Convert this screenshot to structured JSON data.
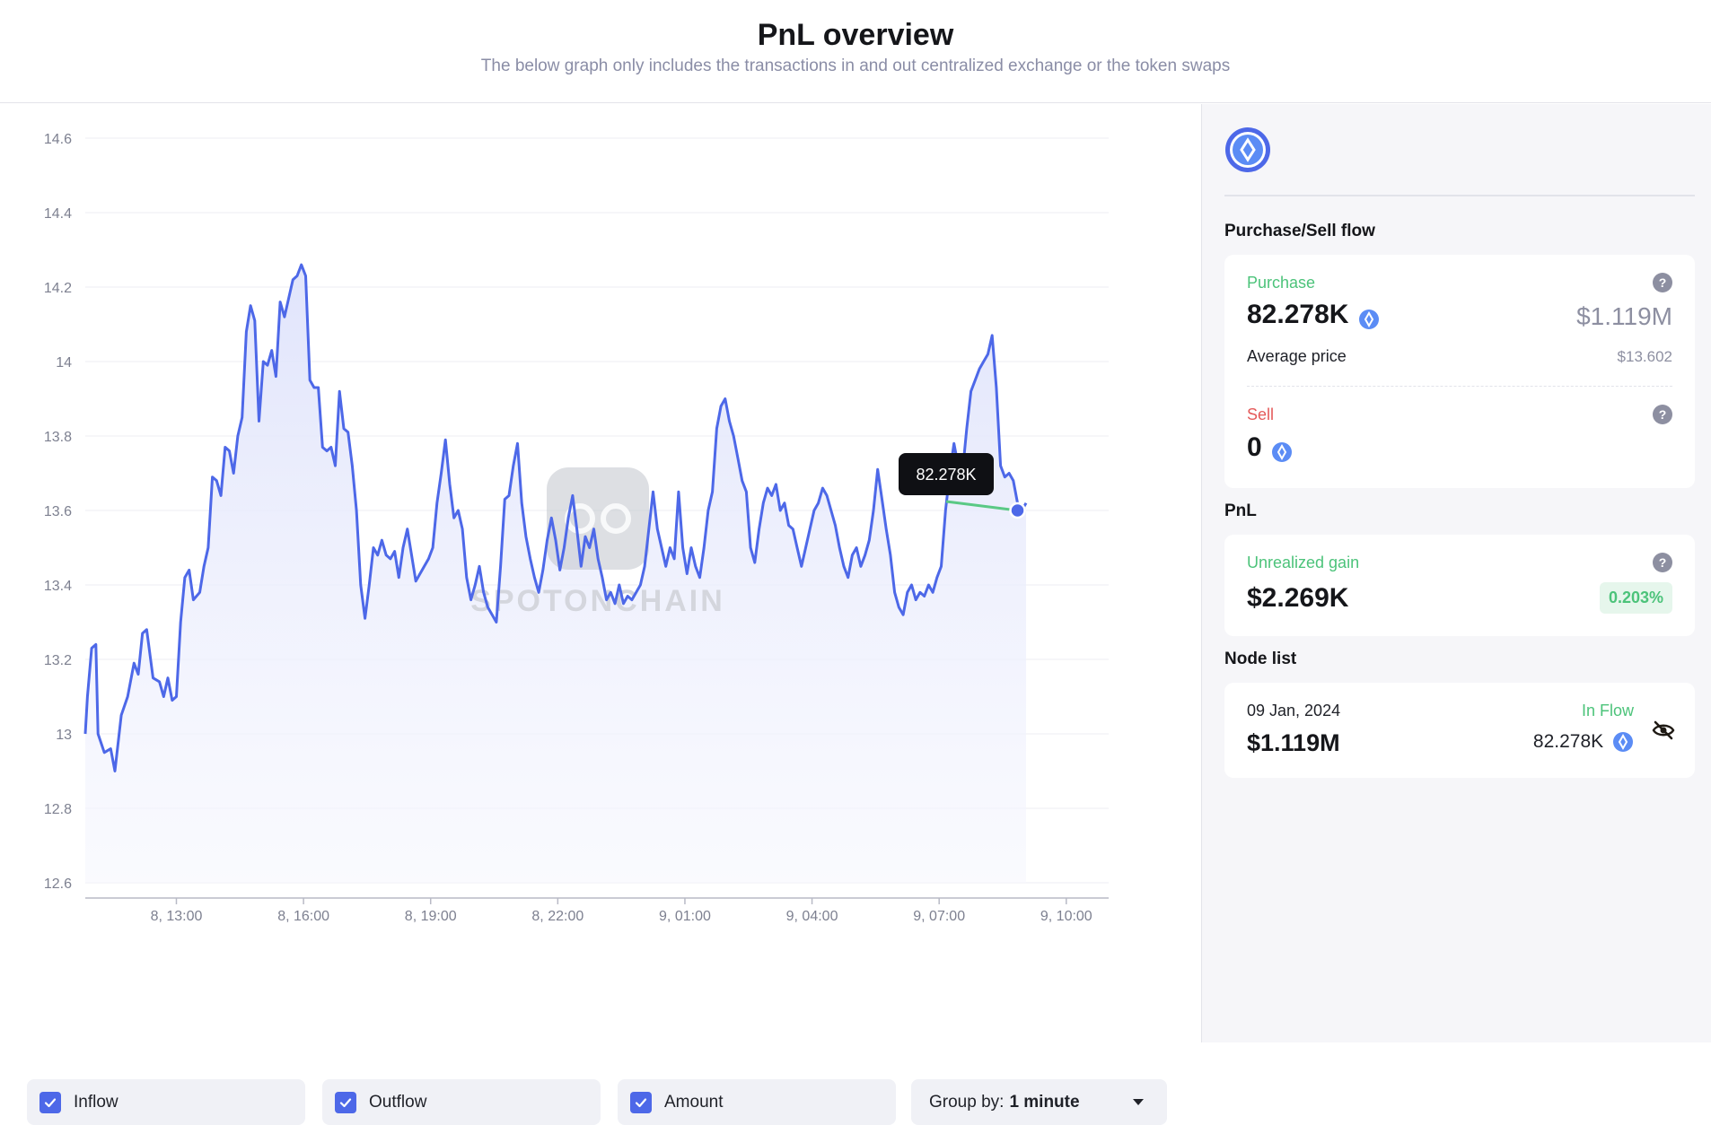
{
  "header": {
    "title": "PnL overview",
    "subtitle": "The below graph only includes the transactions in and out centralized exchange or the token swaps"
  },
  "chart_data": {
    "type": "area",
    "y_ticks": [
      "14.6",
      "14.4",
      "14.2",
      "14",
      "13.8",
      "13.6",
      "13.4",
      "13.2",
      "13",
      "12.8",
      "12.6"
    ],
    "ylim": [
      12.6,
      14.6
    ],
    "x_ticks": [
      "8, 13:00",
      "8, 16:00",
      "8, 19:00",
      "8, 22:00",
      "9, 01:00",
      "9, 04:00",
      "9, 07:00",
      "9, 10:00"
    ],
    "x_tick_hours": [
      13,
      16,
      19,
      22,
      25,
      28,
      31,
      34
    ],
    "xlim_hours": [
      10.85,
      35.0
    ],
    "series": [
      {
        "values": [
          [
            10.85,
            13.0
          ],
          [
            10.9,
            13.1
          ],
          [
            11.0,
            13.23
          ],
          [
            11.1,
            13.24
          ],
          [
            11.15,
            13.0
          ],
          [
            11.3,
            12.95
          ],
          [
            11.45,
            12.96
          ],
          [
            11.55,
            12.9
          ],
          [
            11.7,
            13.05
          ],
          [
            11.85,
            13.1
          ],
          [
            12.0,
            13.19
          ],
          [
            12.1,
            13.16
          ],
          [
            12.2,
            13.27
          ],
          [
            12.3,
            13.28
          ],
          [
            12.45,
            13.15
          ],
          [
            12.6,
            13.14
          ],
          [
            12.7,
            13.1
          ],
          [
            12.8,
            13.15
          ],
          [
            12.9,
            13.09
          ],
          [
            13.0,
            13.1
          ],
          [
            13.1,
            13.3
          ],
          [
            13.2,
            13.42
          ],
          [
            13.3,
            13.44
          ],
          [
            13.4,
            13.36
          ],
          [
            13.55,
            13.38
          ],
          [
            13.65,
            13.45
          ],
          [
            13.75,
            13.5
          ],
          [
            13.85,
            13.69
          ],
          [
            13.95,
            13.68
          ],
          [
            14.05,
            13.64
          ],
          [
            14.15,
            13.77
          ],
          [
            14.25,
            13.76
          ],
          [
            14.35,
            13.7
          ],
          [
            14.45,
            13.8
          ],
          [
            14.55,
            13.85
          ],
          [
            14.65,
            14.08
          ],
          [
            14.75,
            14.15
          ],
          [
            14.85,
            14.11
          ],
          [
            14.95,
            13.84
          ],
          [
            15.05,
            14.0
          ],
          [
            15.15,
            13.99
          ],
          [
            15.25,
            14.03
          ],
          [
            15.35,
            13.96
          ],
          [
            15.45,
            14.16
          ],
          [
            15.55,
            14.12
          ],
          [
            15.65,
            14.17
          ],
          [
            15.75,
            14.22
          ],
          [
            15.85,
            14.23
          ],
          [
            15.95,
            14.26
          ],
          [
            16.05,
            14.23
          ],
          [
            16.15,
            13.95
          ],
          [
            16.25,
            13.93
          ],
          [
            16.35,
            13.93
          ],
          [
            16.45,
            13.77
          ],
          [
            16.55,
            13.76
          ],
          [
            16.65,
            13.77
          ],
          [
            16.75,
            13.72
          ],
          [
            16.85,
            13.92
          ],
          [
            16.95,
            13.82
          ],
          [
            17.05,
            13.81
          ],
          [
            17.15,
            13.72
          ],
          [
            17.25,
            13.6
          ],
          [
            17.35,
            13.4
          ],
          [
            17.45,
            13.31
          ],
          [
            17.55,
            13.4
          ],
          [
            17.65,
            13.5
          ],
          [
            17.75,
            13.48
          ],
          [
            17.85,
            13.52
          ],
          [
            17.95,
            13.48
          ],
          [
            18.05,
            13.47
          ],
          [
            18.15,
            13.49
          ],
          [
            18.25,
            13.42
          ],
          [
            18.35,
            13.5
          ],
          [
            18.45,
            13.55
          ],
          [
            18.55,
            13.48
          ],
          [
            18.65,
            13.41
          ],
          [
            18.75,
            13.43
          ],
          [
            18.85,
            13.45
          ],
          [
            18.95,
            13.47
          ],
          [
            19.05,
            13.5
          ],
          [
            19.15,
            13.62
          ],
          [
            19.25,
            13.7
          ],
          [
            19.35,
            13.79
          ],
          [
            19.45,
            13.67
          ],
          [
            19.55,
            13.58
          ],
          [
            19.65,
            13.6
          ],
          [
            19.75,
            13.55
          ],
          [
            19.85,
            13.42
          ],
          [
            19.95,
            13.36
          ],
          [
            20.05,
            13.4
          ],
          [
            20.15,
            13.45
          ],
          [
            20.25,
            13.38
          ],
          [
            20.35,
            13.34
          ],
          [
            20.45,
            13.32
          ],
          [
            20.55,
            13.3
          ],
          [
            20.65,
            13.45
          ],
          [
            20.75,
            13.63
          ],
          [
            20.85,
            13.64
          ],
          [
            20.95,
            13.72
          ],
          [
            21.05,
            13.78
          ],
          [
            21.15,
            13.62
          ],
          [
            21.25,
            13.53
          ],
          [
            21.35,
            13.47
          ],
          [
            21.45,
            13.42
          ],
          [
            21.55,
            13.38
          ],
          [
            21.65,
            13.44
          ],
          [
            21.75,
            13.52
          ],
          [
            21.85,
            13.58
          ],
          [
            21.95,
            13.52
          ],
          [
            22.05,
            13.44
          ],
          [
            22.15,
            13.5
          ],
          [
            22.25,
            13.58
          ],
          [
            22.35,
            13.64
          ],
          [
            22.45,
            13.55
          ],
          [
            22.55,
            13.45
          ],
          [
            22.65,
            13.53
          ],
          [
            22.75,
            13.5
          ],
          [
            22.85,
            13.55
          ],
          [
            22.95,
            13.47
          ],
          [
            23.05,
            13.42
          ],
          [
            23.15,
            13.36
          ],
          [
            23.25,
            13.38
          ],
          [
            23.35,
            13.35
          ],
          [
            23.45,
            13.4
          ],
          [
            23.55,
            13.35
          ],
          [
            23.65,
            13.37
          ],
          [
            23.75,
            13.36
          ],
          [
            23.85,
            13.38
          ],
          [
            23.95,
            13.4
          ],
          [
            24.05,
            13.45
          ],
          [
            24.15,
            13.55
          ],
          [
            24.25,
            13.65
          ],
          [
            24.35,
            13.55
          ],
          [
            24.45,
            13.5
          ],
          [
            24.55,
            13.45
          ],
          [
            24.65,
            13.5
          ],
          [
            24.75,
            13.47
          ],
          [
            24.85,
            13.65
          ],
          [
            24.95,
            13.5
          ],
          [
            25.05,
            13.43
          ],
          [
            25.15,
            13.5
          ],
          [
            25.25,
            13.45
          ],
          [
            25.35,
            13.42
          ],
          [
            25.45,
            13.5
          ],
          [
            25.55,
            13.6
          ],
          [
            25.65,
            13.65
          ],
          [
            25.75,
            13.82
          ],
          [
            25.85,
            13.88
          ],
          [
            25.95,
            13.9
          ],
          [
            26.05,
            13.84
          ],
          [
            26.15,
            13.8
          ],
          [
            26.25,
            13.74
          ],
          [
            26.35,
            13.68
          ],
          [
            26.45,
            13.65
          ],
          [
            26.55,
            13.5
          ],
          [
            26.65,
            13.46
          ],
          [
            26.75,
            13.55
          ],
          [
            26.85,
            13.62
          ],
          [
            26.95,
            13.66
          ],
          [
            27.05,
            13.64
          ],
          [
            27.15,
            13.67
          ],
          [
            27.25,
            13.6
          ],
          [
            27.35,
            13.62
          ],
          [
            27.45,
            13.56
          ],
          [
            27.55,
            13.55
          ],
          [
            27.65,
            13.5
          ],
          [
            27.75,
            13.45
          ],
          [
            27.85,
            13.5
          ],
          [
            27.95,
            13.55
          ],
          [
            28.05,
            13.6
          ],
          [
            28.15,
            13.62
          ],
          [
            28.25,
            13.66
          ],
          [
            28.35,
            13.64
          ],
          [
            28.45,
            13.6
          ],
          [
            28.55,
            13.56
          ],
          [
            28.65,
            13.5
          ],
          [
            28.75,
            13.45
          ],
          [
            28.85,
            13.42
          ],
          [
            28.95,
            13.48
          ],
          [
            29.05,
            13.5
          ],
          [
            29.15,
            13.45
          ],
          [
            29.25,
            13.48
          ],
          [
            29.35,
            13.52
          ],
          [
            29.45,
            13.6
          ],
          [
            29.55,
            13.71
          ],
          [
            29.65,
            13.63
          ],
          [
            29.75,
            13.55
          ],
          [
            29.85,
            13.48
          ],
          [
            29.95,
            13.38
          ],
          [
            30.05,
            13.34
          ],
          [
            30.15,
            13.32
          ],
          [
            30.25,
            13.38
          ],
          [
            30.35,
            13.4
          ],
          [
            30.45,
            13.36
          ],
          [
            30.55,
            13.38
          ],
          [
            30.65,
            13.37
          ],
          [
            30.75,
            13.4
          ],
          [
            30.85,
            13.38
          ],
          [
            30.95,
            13.42
          ],
          [
            31.05,
            13.45
          ],
          [
            31.15,
            13.6
          ],
          [
            31.25,
            13.7
          ],
          [
            31.35,
            13.78
          ],
          [
            31.45,
            13.72
          ],
          [
            31.55,
            13.7
          ],
          [
            31.65,
            13.82
          ],
          [
            31.75,
            13.92
          ],
          [
            31.85,
            13.95
          ],
          [
            31.95,
            13.98
          ],
          [
            32.05,
            14.0
          ],
          [
            32.15,
            14.02
          ],
          [
            32.25,
            14.07
          ],
          [
            32.35,
            13.93
          ],
          [
            32.45,
            13.72
          ],
          [
            32.55,
            13.69
          ],
          [
            32.65,
            13.7
          ],
          [
            32.75,
            13.68
          ],
          [
            32.85,
            13.62
          ],
          [
            32.95,
            13.6
          ],
          [
            33.05,
            13.62
          ]
        ]
      }
    ],
    "tooltip": {
      "label": "82.278K",
      "point": [
        32.85,
        13.6
      ]
    },
    "watermark": "SPOTONCHAIN",
    "line_color": "#4d68e8",
    "tooltip_line_color": "#5ac985",
    "grid": true
  },
  "controls": {
    "inflow": "Inflow",
    "outflow": "Outflow",
    "amount": "Amount",
    "group_by_label": "Group by:",
    "group_by_value": "1 minute"
  },
  "sidebar": {
    "purchase_sell_title": "Purchase/Sell flow",
    "purchase": {
      "label": "Purchase",
      "amount": "82.278K",
      "usd": "$1.119M",
      "avg_label": "Average price",
      "avg_value": "$13.602"
    },
    "sell": {
      "label": "Sell",
      "amount": "0"
    },
    "pnl_title": "PnL",
    "pnl": {
      "label": "Unrealized gain",
      "value": "$2.269K",
      "percent": "0.203%"
    },
    "node_list_title": "Node list",
    "node": {
      "date": "09 Jan, 2024",
      "usd": "$1.119M",
      "flow_label": "In Flow",
      "amount": "82.278K"
    }
  },
  "colors": {
    "accent": "#4d68e8",
    "green": "#4cc37a",
    "red": "#e45a5a",
    "coin": "#5b8cf5"
  },
  "icons": [
    "token-logo-icon",
    "coin-icon",
    "help-icon",
    "eye-slash-icon",
    "checkbox-icon",
    "caret-down-icon"
  ]
}
